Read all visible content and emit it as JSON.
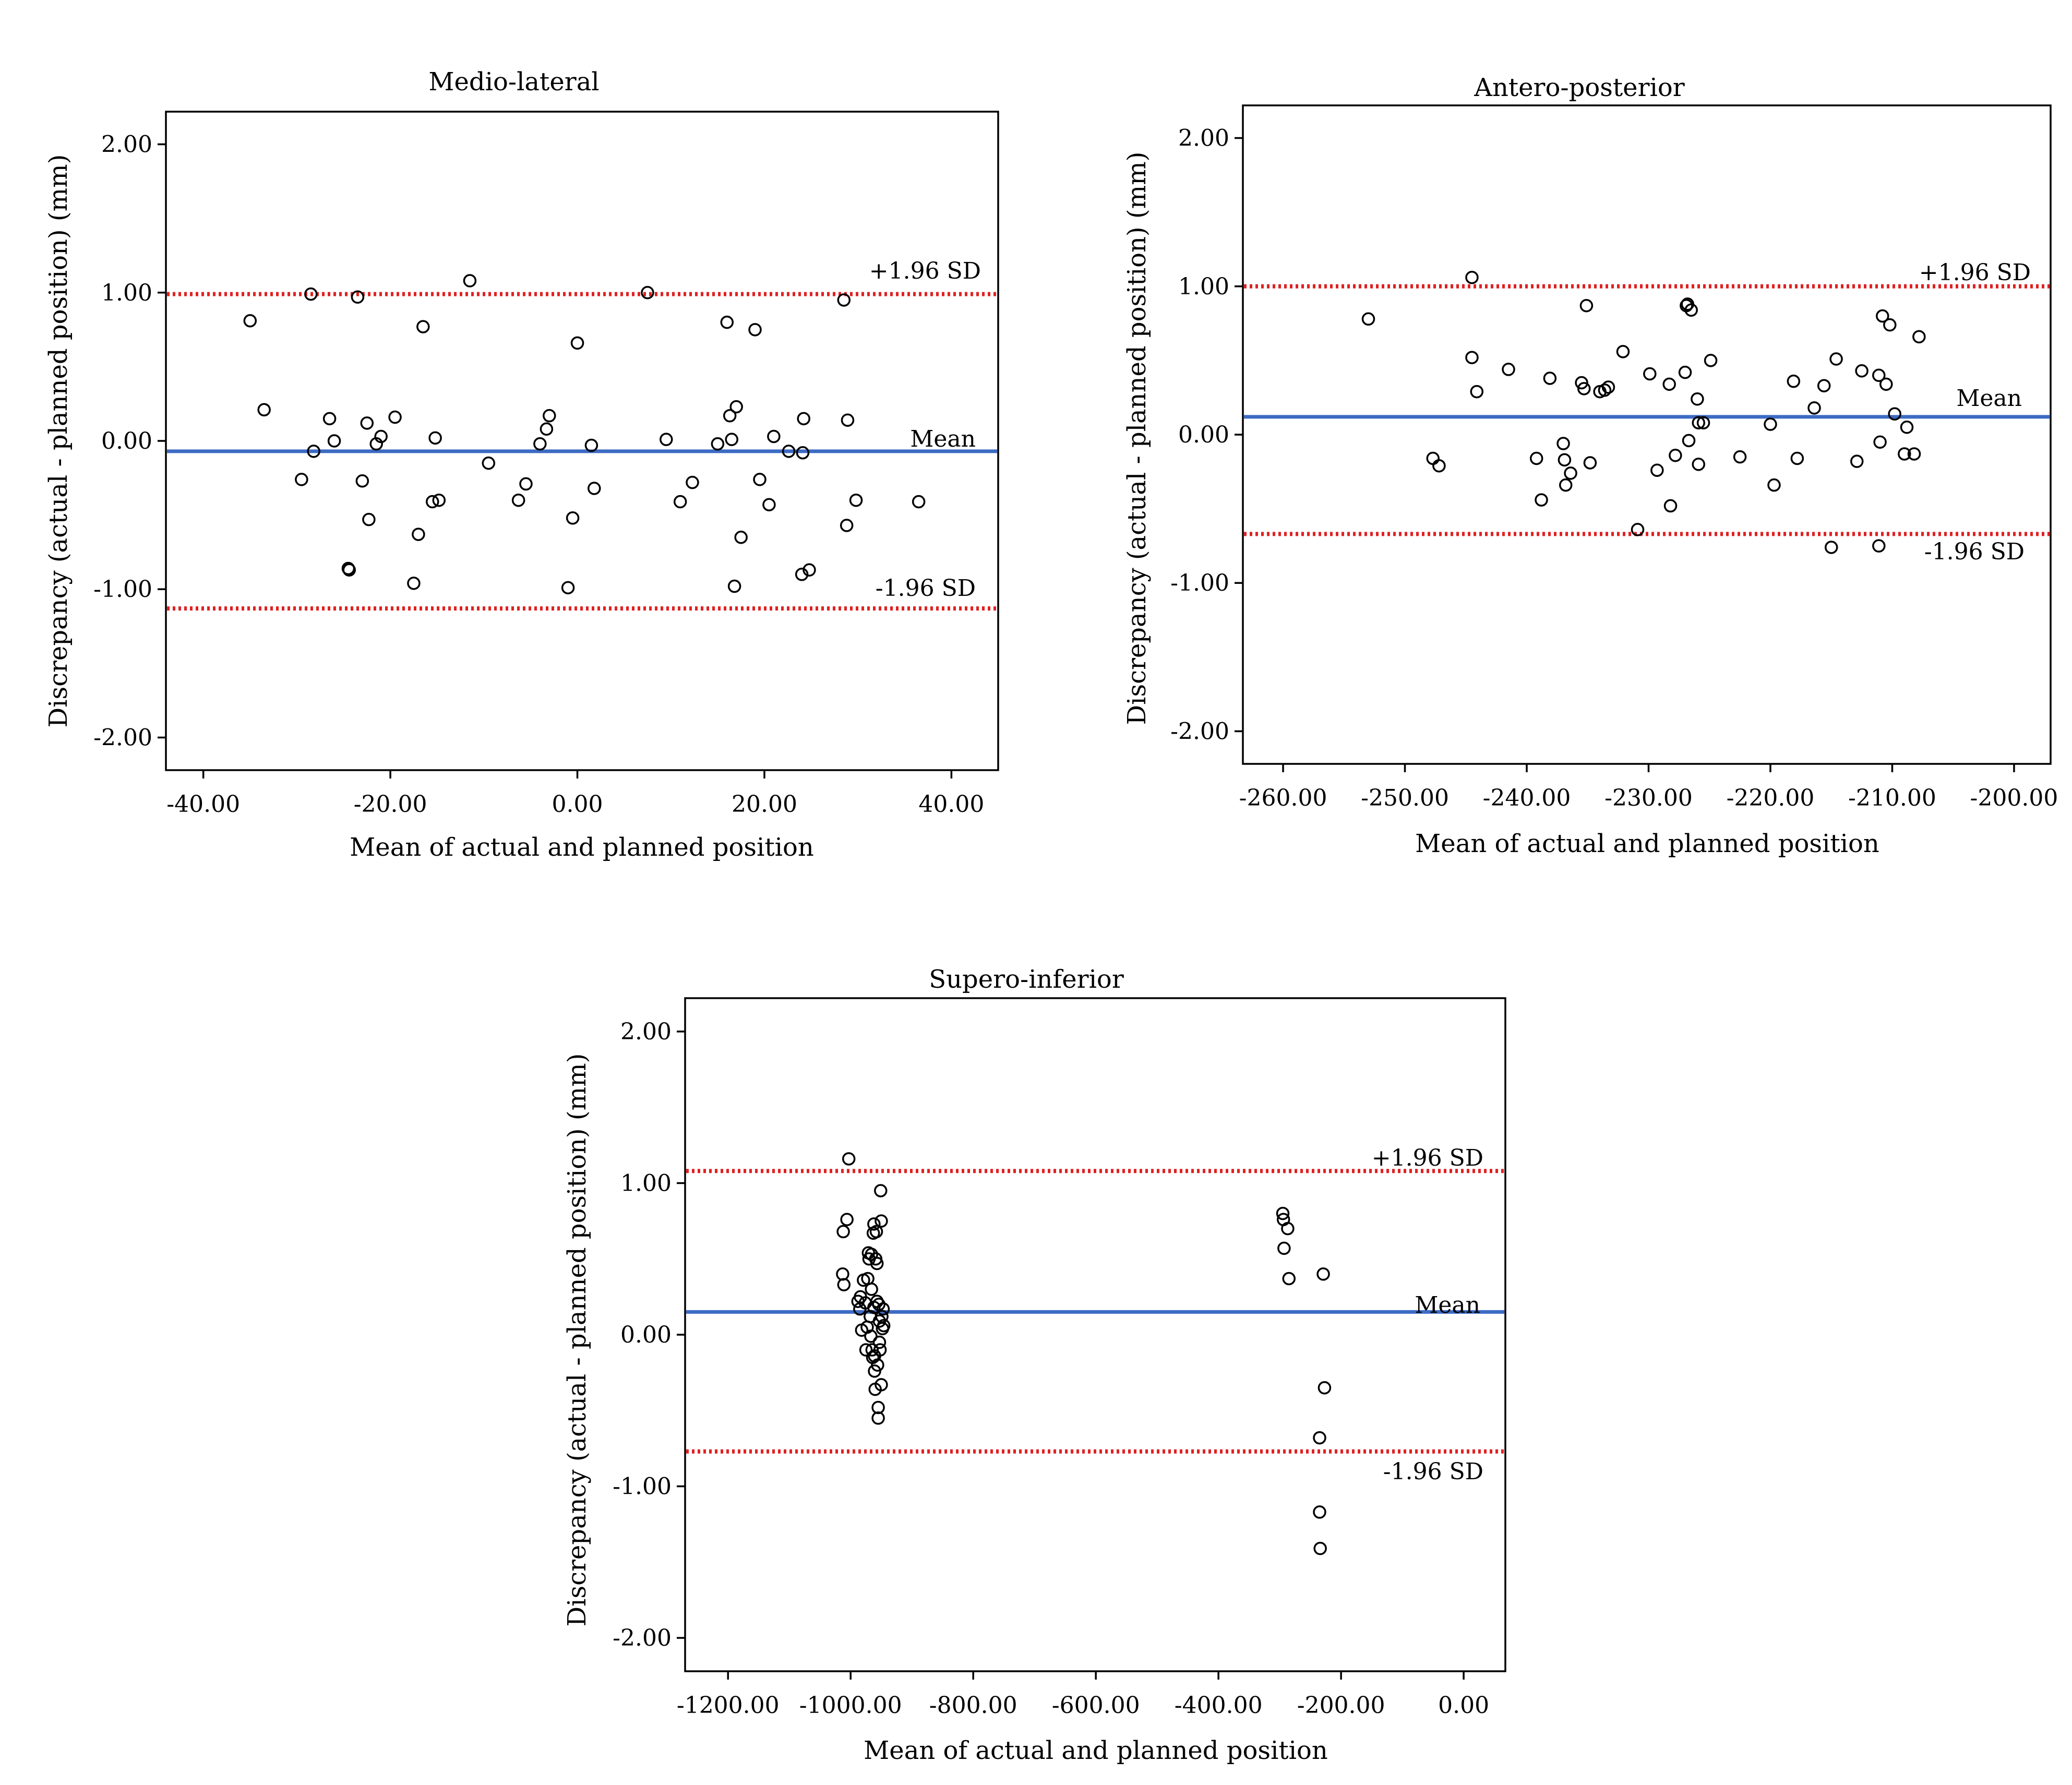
{
  "colors": {
    "mean_line": "#3c6bc4",
    "sd_line": "#e02020",
    "background": "#ffffff",
    "markers": "#000000"
  },
  "chart_data": [
    {
      "type": "scatter",
      "title": "Medio-lateral",
      "xlabel": "Mean of actual and planned position",
      "ylabel": "Discrepancy (actual - planned position) (mm)",
      "xlim": [
        -44,
        45
      ],
      "ylim": [
        -2.22,
        2.22
      ],
      "xticks": [
        -40,
        -20,
        0,
        20,
        40
      ],
      "xtick_labels": [
        "-40.00",
        "-20.00",
        "0.00",
        "20.00",
        "40.00"
      ],
      "yticks": [
        2,
        1,
        0,
        -1,
        -2
      ],
      "ytick_labels": [
        "2.00",
        "1.00",
        "0.00",
        "-1.00",
        "-2.00"
      ],
      "mean": -0.07,
      "upper_loa": 0.99,
      "lower_loa": -1.13,
      "mean_label": "Mean",
      "upper_label": "+1.96 SD",
      "lower_label": "-1.96 SD",
      "points": [
        [
          -35,
          0.81
        ],
        [
          -33.5,
          0.21
        ],
        [
          -29.5,
          -0.26
        ],
        [
          -28.5,
          0.99
        ],
        [
          -28.2,
          -0.07
        ],
        [
          -26.5,
          0.15
        ],
        [
          -26,
          0
        ],
        [
          -23.5,
          0.97
        ],
        [
          -23,
          -0.27
        ],
        [
          -22.5,
          0.12
        ],
        [
          -22.3,
          -0.53
        ],
        [
          -21.5,
          -0.02
        ],
        [
          -21,
          0.03
        ],
        [
          -19.5,
          0.16
        ],
        [
          -24.5,
          -0.86
        ],
        [
          -24.4,
          -0.87
        ],
        [
          -17.5,
          -0.96
        ],
        [
          -17,
          -0.63
        ],
        [
          -16.5,
          0.77
        ],
        [
          -15.5,
          -0.41
        ],
        [
          -15.2,
          0.02
        ],
        [
          -14.8,
          -0.4
        ],
        [
          -11.5,
          1.08
        ],
        [
          -9.5,
          -0.15
        ],
        [
          -6.3,
          -0.4
        ],
        [
          -5.5,
          -0.29
        ],
        [
          -4,
          -0.02
        ],
        [
          -3.3,
          0.08
        ],
        [
          -3,
          0.17
        ],
        [
          -1,
          -0.99
        ],
        [
          -0.5,
          -0.52
        ],
        [
          0,
          0.66
        ],
        [
          1.5,
          -0.03
        ],
        [
          1.8,
          -0.32
        ],
        [
          7.5,
          1
        ],
        [
          9.5,
          0.01
        ],
        [
          11,
          -0.41
        ],
        [
          12.3,
          -0.28
        ],
        [
          15,
          -0.02
        ],
        [
          16,
          0.8
        ],
        [
          16.3,
          0.17
        ],
        [
          16.5,
          0.01
        ],
        [
          16.8,
          -0.98
        ],
        [
          17,
          0.23
        ],
        [
          17.5,
          -0.65
        ],
        [
          19,
          0.75
        ],
        [
          19.5,
          -0.26
        ],
        [
          20.5,
          -0.43
        ],
        [
          21,
          0.03
        ],
        [
          22.6,
          -0.07
        ],
        [
          24.1,
          -0.08
        ],
        [
          24.2,
          0.15
        ],
        [
          24,
          -0.9
        ],
        [
          24.8,
          -0.87
        ],
        [
          28.5,
          0.95
        ],
        [
          28.8,
          -0.57
        ],
        [
          28.9,
          0.14
        ],
        [
          29.8,
          -0.4
        ],
        [
          36.5,
          -0.41
        ]
      ]
    },
    {
      "type": "scatter",
      "title": "Antero-posterior",
      "xlabel": "Mean of actual and planned position",
      "ylabel": "Discrepancy (actual - planned position) (mm)",
      "xlim": [
        -263.3,
        -197
      ],
      "ylim": [
        -2.22,
        2.22
      ],
      "xticks": [
        -260,
        -250,
        -240,
        -230,
        -220,
        -210,
        -200
      ],
      "xtick_labels": [
        "-260.00",
        "-250.00",
        "-240.00",
        "-230.00",
        "-220.00",
        "-210.00",
        "-200.00"
      ],
      "yticks": [
        2,
        1,
        0,
        -1,
        -2
      ],
      "ytick_labels": [
        "2.00",
        "1.00",
        "0.00",
        "-1.00",
        "-2.00"
      ],
      "mean": 0.12,
      "upper_loa": 1.0,
      "lower_loa": -0.67,
      "mean_label": "Mean",
      "upper_label": "+1.96 SD",
      "lower_label": "-1.96 SD",
      "points": [
        [
          -253,
          0.78
        ],
        [
          -247.7,
          -0.16
        ],
        [
          -247.2,
          -0.21
        ],
        [
          -244.5,
          1.06
        ],
        [
          -244.5,
          0.52
        ],
        [
          -244.1,
          0.29
        ],
        [
          -241.5,
          0.44
        ],
        [
          -239.2,
          -0.16
        ],
        [
          -238.8,
          -0.44
        ],
        [
          -238.1,
          0.38
        ],
        [
          -237,
          -0.06
        ],
        [
          -236.9,
          -0.17
        ],
        [
          -236.8,
          -0.34
        ],
        [
          -236.4,
          -0.26
        ],
        [
          -235.5,
          0.35
        ],
        [
          -235.3,
          0.31
        ],
        [
          -235.1,
          0.87
        ],
        [
          -234.8,
          -0.19
        ],
        [
          -234,
          0.29
        ],
        [
          -233.6,
          0.3
        ],
        [
          -233.3,
          0.32
        ],
        [
          -232.1,
          0.56
        ],
        [
          -230.9,
          -0.64
        ],
        [
          -229.9,
          0.41
        ],
        [
          -229.3,
          -0.24
        ],
        [
          -228.3,
          0.34
        ],
        [
          -228.2,
          -0.48
        ],
        [
          -227.8,
          -0.14
        ],
        [
          -227,
          0.42
        ],
        [
          -226.9,
          0.87
        ],
        [
          -226.8,
          0.88
        ],
        [
          -226.7,
          -0.04
        ],
        [
          -226.5,
          0.84
        ],
        [
          -226,
          0.24
        ],
        [
          -225.9,
          -0.2
        ],
        [
          -225.9,
          0.08
        ],
        [
          -225.5,
          0.08
        ],
        [
          -224.9,
          0.5
        ],
        [
          -222.5,
          -0.15
        ],
        [
          -220,
          0.07
        ],
        [
          -219.7,
          -0.34
        ],
        [
          -218.1,
          0.36
        ],
        [
          -217.8,
          -0.16
        ],
        [
          -216.4,
          0.18
        ],
        [
          -215.6,
          0.33
        ],
        [
          -215,
          -0.76
        ],
        [
          -214.6,
          0.51
        ],
        [
          -212.9,
          -0.18
        ],
        [
          -212.5,
          0.43
        ],
        [
          -211.1,
          0.4
        ],
        [
          -211.1,
          -0.75
        ],
        [
          -211,
          -0.05
        ],
        [
          -210.8,
          0.8
        ],
        [
          -210.5,
          0.34
        ],
        [
          -210.2,
          0.74
        ],
        [
          -209.8,
          0.14
        ],
        [
          -209,
          -0.13
        ],
        [
          -208.8,
          0.05
        ],
        [
          -208.2,
          -0.13
        ],
        [
          -207.8,
          0.66
        ]
      ]
    },
    {
      "type": "scatter",
      "title": "Supero-inferior",
      "xlabel": "Mean of actual and planned position",
      "ylabel": "Discrepancy (actual - planned position) (mm)",
      "xlim": [
        -1270,
        68
      ],
      "ylim": [
        -2.22,
        2.22
      ],
      "xticks": [
        -1200,
        -1000,
        -800,
        -600,
        -400,
        -200,
        0
      ],
      "xtick_labels": [
        "-1200.00",
        "-1000.00",
        "-800.00",
        "-600.00",
        "-400.00",
        "-200.00",
        "0.00"
      ],
      "yticks": [
        2,
        1,
        0,
        -1,
        -2
      ],
      "ytick_labels": [
        "2.00",
        "1.00",
        "0.00",
        "-1.00",
        "-2.00"
      ],
      "mean": 0.15,
      "upper_loa": 1.08,
      "lower_loa": -0.77,
      "mean_label": "Mean",
      "upper_label": "+1.96 SD",
      "lower_label": "-1.96 SD",
      "points": [
        [
          -1003,
          1.16
        ],
        [
          -1012,
          0.68
        ],
        [
          -1006,
          0.76
        ],
        [
          -1013,
          0.4
        ],
        [
          -1011,
          0.33
        ],
        [
          -988,
          0.22
        ],
        [
          -985,
          0.17
        ],
        [
          -984,
          0.25
        ],
        [
          -982,
          0.03
        ],
        [
          -979,
          0.36
        ],
        [
          -976,
          0.21
        ],
        [
          -975,
          -0.1
        ],
        [
          -973,
          0.05
        ],
        [
          -972,
          0.37
        ],
        [
          -971,
          0.54
        ],
        [
          -970,
          0.5
        ],
        [
          -968,
          0.12
        ],
        [
          -967,
          -0.01
        ],
        [
          -966,
          0.53
        ],
        [
          -966,
          0.3
        ],
        [
          -965,
          -0.1
        ],
        [
          -964,
          -0.15
        ],
        [
          -963,
          0.67
        ],
        [
          -962,
          0.73
        ],
        [
          -962,
          0.18
        ],
        [
          -961,
          -0.14
        ],
        [
          -961,
          -0.24
        ],
        [
          -960,
          -0.36
        ],
        [
          -959,
          0.5
        ],
        [
          -958,
          0.68
        ],
        [
          -957,
          0.47
        ],
        [
          -957,
          0.22
        ],
        [
          -956,
          -0.2
        ],
        [
          -955,
          -0.48
        ],
        [
          -955,
          -0.55
        ],
        [
          -954,
          0.2
        ],
        [
          -953,
          0.09
        ],
        [
          -953,
          -0.05
        ],
        [
          -952,
          -0.1
        ],
        [
          -951,
          0.95
        ],
        [
          -950,
          0.75
        ],
        [
          -950,
          -0.33
        ],
        [
          -949,
          0.12
        ],
        [
          -948,
          0.04
        ],
        [
          -947,
          0.17
        ],
        [
          -946,
          0.06
        ],
        [
          -295,
          0.8
        ],
        [
          -294,
          0.76
        ],
        [
          -293,
          0.57
        ],
        [
          -287,
          0.7
        ],
        [
          -285,
          0.37
        ],
        [
          -229,
          0.4
        ],
        [
          -227,
          -0.35
        ],
        [
          -235,
          -0.68
        ],
        [
          -235,
          -1.17
        ],
        [
          -234,
          -1.41
        ]
      ]
    }
  ]
}
